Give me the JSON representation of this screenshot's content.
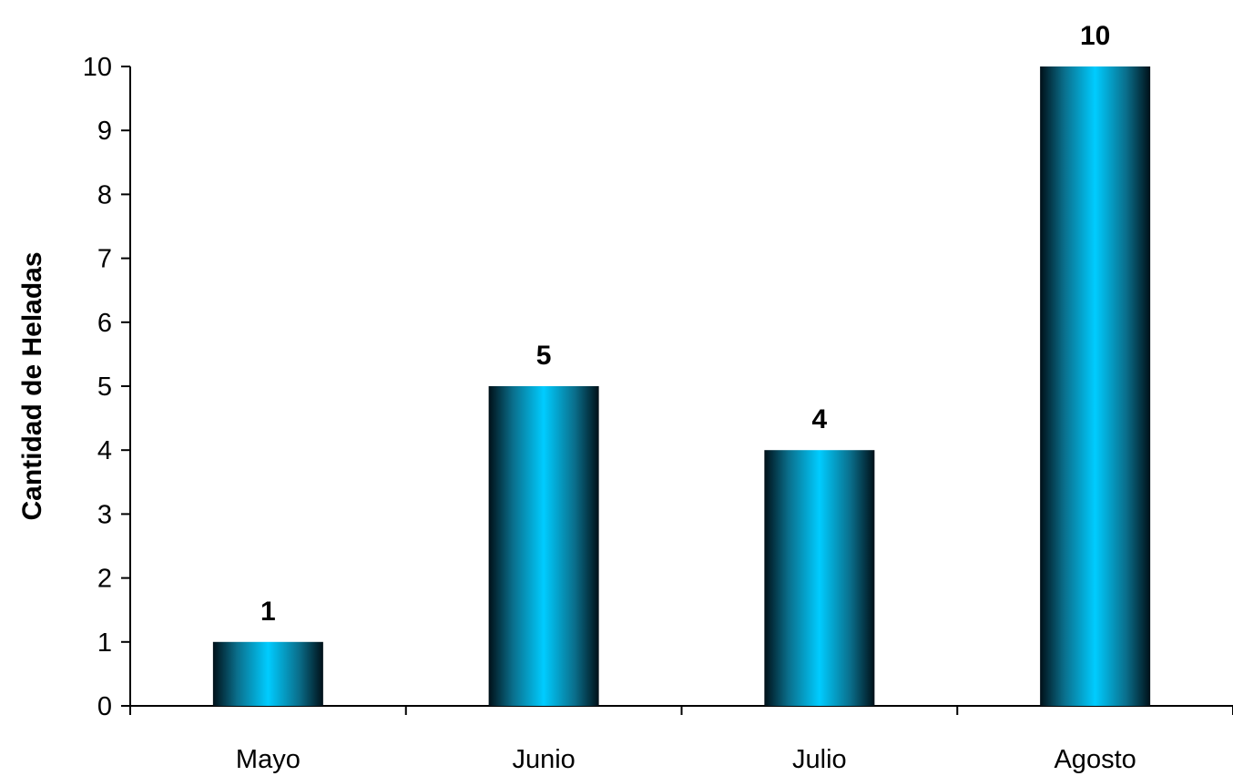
{
  "chart_data": {
    "type": "bar",
    "title": "",
    "xlabel": "",
    "ylabel": "Cantidad de Heladas",
    "categories": [
      "Mayo",
      "Junio",
      "Julio",
      "Agosto"
    ],
    "values": [
      1,
      5,
      4,
      10
    ],
    "ylim": [
      0,
      10
    ],
    "yticks": [
      0,
      1,
      2,
      3,
      4,
      5,
      6,
      7,
      8,
      9,
      10
    ],
    "grid": false,
    "legend": "none",
    "data_labels": true,
    "colors": {
      "bar_center": "#00CCFF",
      "bar_edge": "#001018",
      "axis": "#000000"
    }
  }
}
